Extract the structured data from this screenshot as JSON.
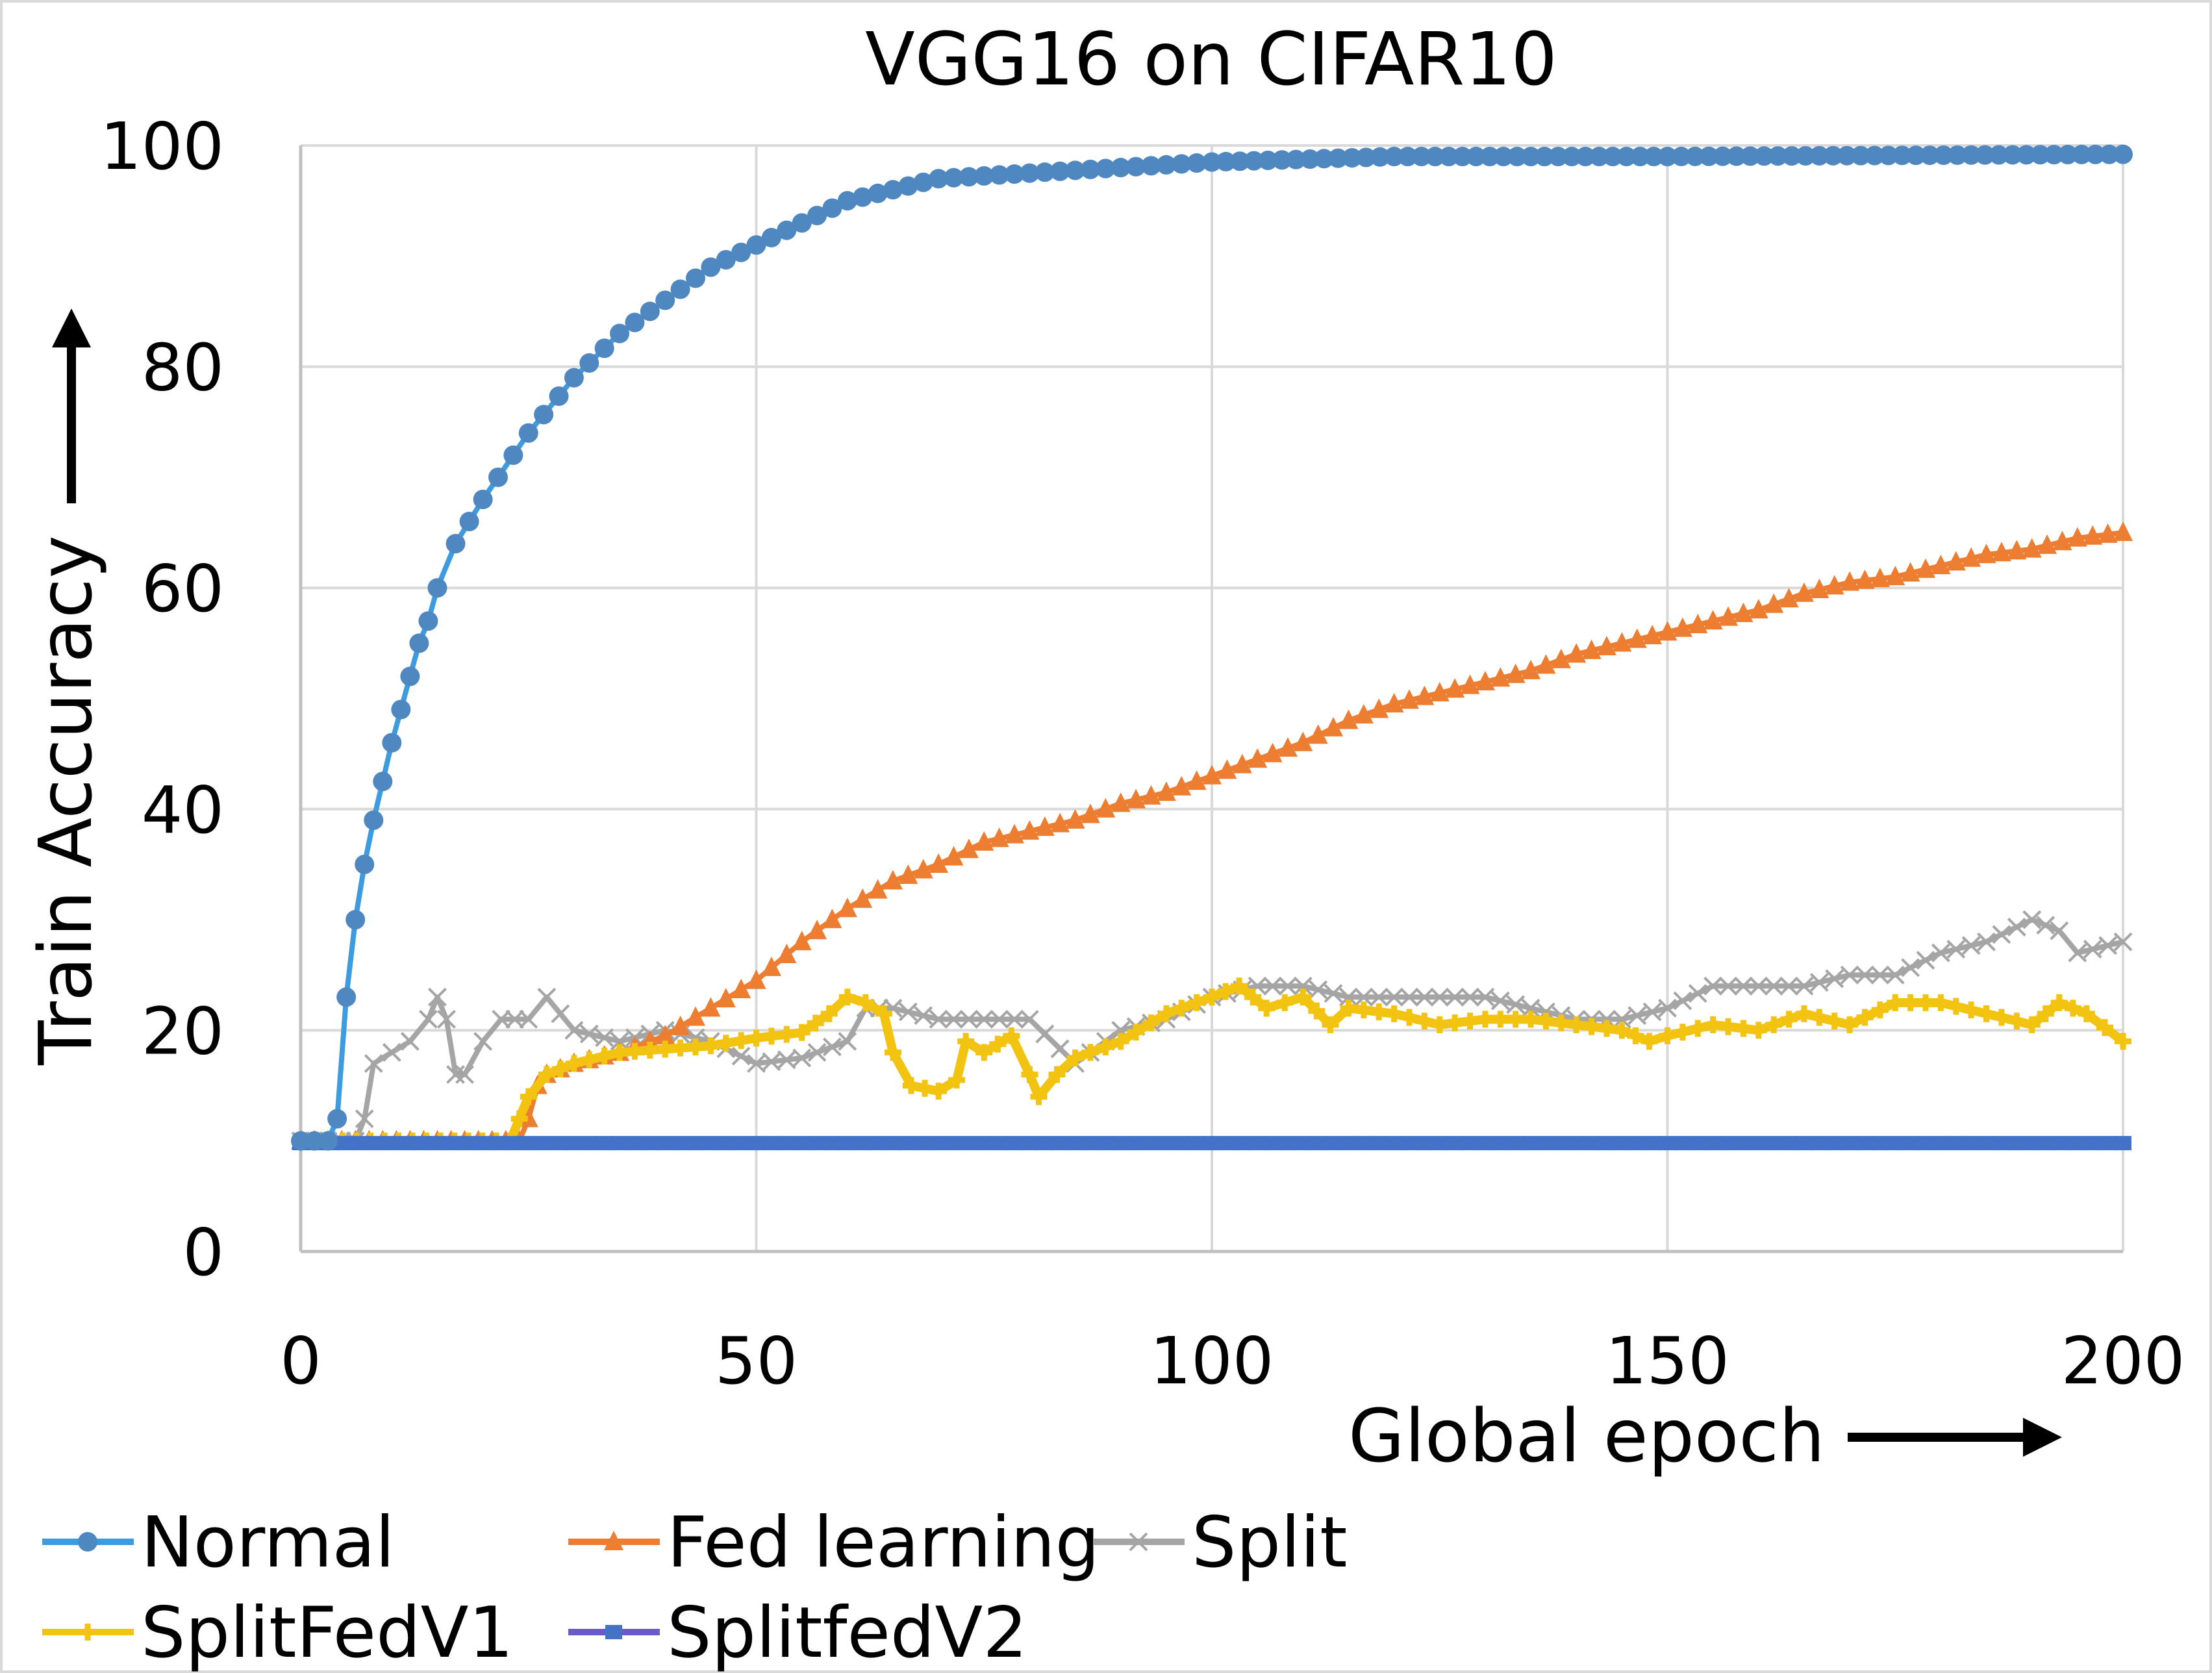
{
  "chart_data": {
    "type": "line",
    "title": "VGG16 on CIFAR10",
    "xlabel": "Global epoch",
    "ylabel": "Train Accuracy",
    "xlim": [
      0,
      200
    ],
    "ylim": [
      0,
      100
    ],
    "xticks": [
      0,
      50,
      100,
      150,
      200
    ],
    "yticks": [
      0,
      20,
      40,
      60,
      80,
      100
    ],
    "grid": true,
    "legend_position": "bottom",
    "series": [
      {
        "name": "Normal",
        "color": "#5B9BD5",
        "marker": "circle",
        "x": [
          0,
          3,
          4,
          5,
          6,
          7,
          8,
          9,
          10,
          11,
          12,
          13,
          14,
          15,
          17,
          20,
          25,
          30,
          35,
          40,
          45,
          50,
          55,
          60,
          65,
          70,
          80,
          90,
          100,
          120,
          150,
          200
        ],
        "y": [
          10,
          10,
          12,
          23,
          30,
          35,
          39,
          42.5,
          46,
          49,
          52,
          55,
          57,
          60,
          64,
          68,
          74,
          79,
          83,
          86,
          89,
          91,
          93,
          95,
          96,
          97,
          97.5,
          98,
          98.5,
          99,
          99,
          99.2
        ]
      },
      {
        "name": "Fed learning",
        "color": "#ED7D31",
        "marker": "triangle",
        "x": [
          0,
          24,
          25,
          26,
          27,
          30,
          35,
          40,
          45,
          50,
          55,
          60,
          65,
          70,
          75,
          80,
          85,
          90,
          95,
          100,
          105,
          110,
          115,
          120,
          125,
          130,
          135,
          140,
          145,
          150,
          155,
          160,
          165,
          170,
          175,
          180,
          185,
          190,
          195,
          200
        ],
        "y": [
          10,
          10,
          12,
          15,
          16,
          17,
          18,
          19.5,
          22,
          24.5,
          28,
          31,
          33.5,
          35,
          37,
          38,
          39,
          40.5,
          41.5,
          43,
          44.5,
          46,
          48,
          49.5,
          50.5,
          51.5,
          52.5,
          54,
          55,
          56,
          57,
          58,
          59.5,
          60.5,
          61,
          62,
          63,
          63.5,
          64.5,
          65
        ]
      },
      {
        "name": "Split",
        "color": "#A5A5A5",
        "marker": "x",
        "x": [
          0,
          6,
          7,
          8,
          10,
          12,
          14,
          15,
          16,
          17,
          18,
          20,
          22,
          25,
          27,
          30,
          35,
          40,
          45,
          50,
          55,
          60,
          62,
          65,
          70,
          75,
          80,
          85,
          90,
          95,
          100,
          105,
          110,
          115,
          120,
          125,
          130,
          135,
          140,
          145,
          150,
          155,
          160,
          165,
          170,
          175,
          180,
          185,
          190,
          193,
          195,
          200
        ],
        "y": [
          10,
          10,
          12,
          17,
          18,
          19,
          21,
          23,
          21,
          16,
          16,
          19,
          21,
          21,
          23,
          20,
          19,
          20,
          19,
          17,
          17.5,
          19,
          22,
          22,
          21,
          21,
          21,
          17,
          20,
          21,
          23,
          24,
          24,
          23,
          23,
          23,
          23,
          22,
          21,
          21,
          22,
          24,
          24,
          24,
          25,
          25,
          27,
          28,
          30,
          29,
          27,
          28
        ]
      },
      {
        "name": "SplitFedV1",
        "color": "#F2C411",
        "marker": "plus",
        "x": [
          0,
          23,
          24,
          25,
          27,
          30,
          35,
          40,
          45,
          50,
          55,
          58,
          60,
          62,
          64,
          65,
          67,
          70,
          72,
          73,
          75,
          78,
          80,
          81,
          83,
          85,
          90,
          95,
          100,
          103,
          106,
          110,
          113,
          115,
          120,
          125,
          130,
          135,
          140,
          145,
          148,
          150,
          155,
          160,
          165,
          170,
          175,
          180,
          185,
          190,
          193,
          196,
          200
        ],
        "y": [
          10,
          10,
          12,
          14,
          16,
          17,
          18,
          18.3,
          18.6,
          19.3,
          19.8,
          21.5,
          23,
          22.5,
          21.5,
          18,
          15,
          14.5,
          15.5,
          19,
          18,
          19.5,
          16,
          14,
          16,
          17.5,
          19,
          21.5,
          23,
          24,
          22,
          23,
          20.5,
          22,
          21.5,
          20.5,
          21,
          21,
          20.5,
          20,
          19,
          19.5,
          20.5,
          20,
          21.5,
          20.5,
          22.5,
          22.5,
          21.5,
          20.5,
          22.5,
          21.5,
          19
        ]
      },
      {
        "name": "SplitfedV2",
        "color": "#4472C4",
        "marker": "square",
        "x": [
          0,
          10,
          20,
          30,
          40,
          50,
          60,
          70,
          80,
          90,
          100,
          110,
          120,
          130,
          140,
          150,
          160,
          170,
          180,
          190,
          200
        ],
        "y": [
          9.8,
          9.8,
          9.8,
          9.8,
          9.8,
          9.8,
          9.8,
          9.8,
          9.8,
          9.8,
          9.8,
          9.8,
          9.8,
          9.8,
          9.8,
          9.8,
          9.8,
          9.8,
          9.8,
          9.8,
          9.8
        ]
      }
    ]
  }
}
